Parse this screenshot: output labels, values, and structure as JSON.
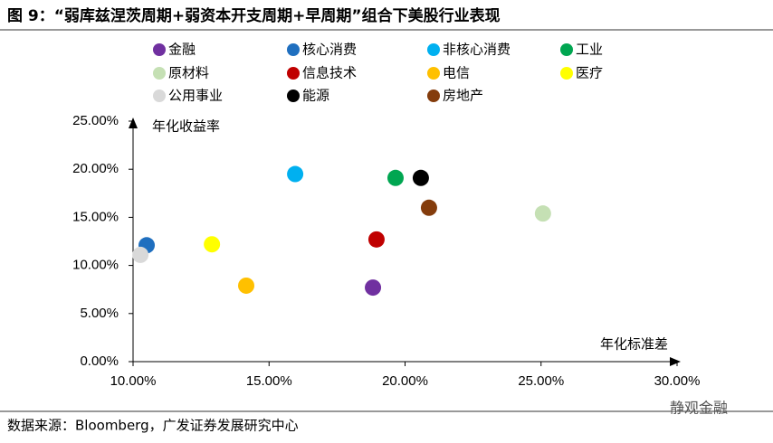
{
  "chart_data": {
    "type": "scatter",
    "title": "图 9：“弱库兹涅茨周期+弱资本开支周期+早周期”组合下美股行业表现",
    "x_label": "年化标准差",
    "y_label": "年化收益率",
    "series": [
      {
        "name": "金融",
        "color": "#7030a0",
        "x": [
          18.82
        ],
        "values": [
          7.7
        ]
      },
      {
        "name": "核心消费",
        "color": "#1f6fbf",
        "x": [
          10.5
        ],
        "values": [
          12.1
        ]
      },
      {
        "name": "非核心消费",
        "color": "#00b0f0",
        "x": [
          15.96
        ],
        "values": [
          19.5
        ]
      },
      {
        "name": "工业",
        "color": "#00a651",
        "x": [
          19.65
        ],
        "values": [
          19.1
        ]
      },
      {
        "name": "原材料",
        "color": "#c5e0b4",
        "x": [
          25.07
        ],
        "values": [
          15.4
        ]
      },
      {
        "name": "信息技术",
        "color": "#c00000",
        "x": [
          18.95
        ],
        "values": [
          12.7
        ]
      },
      {
        "name": "电信",
        "color": "#ffc000",
        "x": [
          14.16
        ],
        "values": [
          7.9
        ]
      },
      {
        "name": "医疗",
        "color": "#ffff00",
        "x": [
          12.9
        ],
        "values": [
          12.2
        ]
      },
      {
        "name": "公用事业",
        "color": "#d9d9d9",
        "x": [
          10.27
        ],
        "values": [
          11.1
        ]
      },
      {
        "name": "能源",
        "color": "#000000",
        "x": [
          20.58
        ],
        "values": [
          19.1
        ]
      },
      {
        "name": "房地产",
        "color": "#843c0c",
        "x": [
          20.88
        ],
        "values": [
          16.0
        ]
      }
    ],
    "xlim": [
      10,
      30
    ],
    "xticks": [
      {
        "value": 10,
        "label": "10.00%"
      },
      {
        "value": 15,
        "label": "15.00%"
      },
      {
        "value": 20,
        "label": "20.00%"
      },
      {
        "value": 25,
        "label": "25.00%"
      },
      {
        "value": 30,
        "label": "30.00%"
      }
    ],
    "ylim": [
      0,
      25
    ],
    "yticks": [
      {
        "value": 0,
        "label": "0.00%"
      },
      {
        "value": 5,
        "label": "5.00%"
      },
      {
        "value": 10,
        "label": "10.00%"
      },
      {
        "value": 15,
        "label": "15.00%"
      },
      {
        "value": 20,
        "label": "20.00%"
      },
      {
        "value": 25,
        "label": "25.00%"
      }
    ],
    "source": "数据来源：Bloomberg，广发证券发展研究中心",
    "watermark": "静观金融"
  }
}
